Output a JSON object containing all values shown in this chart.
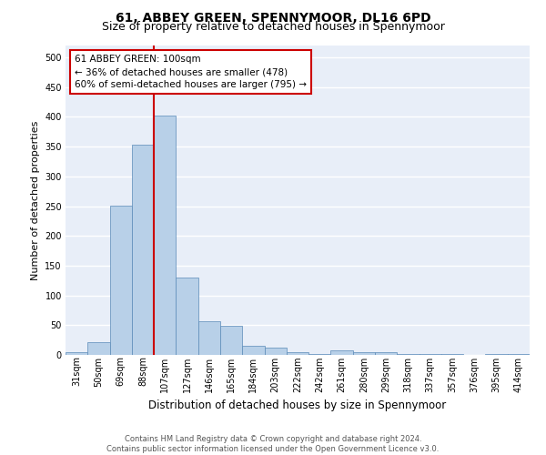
{
  "title": "61, ABBEY GREEN, SPENNYMOOR, DL16 6PD",
  "subtitle": "Size of property relative to detached houses in Spennymoor",
  "xlabel": "Distribution of detached houses by size in Spennymoor",
  "ylabel": "Number of detached properties",
  "bar_labels": [
    "31sqm",
    "50sqm",
    "69sqm",
    "88sqm",
    "107sqm",
    "127sqm",
    "146sqm",
    "165sqm",
    "184sqm",
    "203sqm",
    "222sqm",
    "242sqm",
    "261sqm",
    "280sqm",
    "299sqm",
    "318sqm",
    "337sqm",
    "357sqm",
    "376sqm",
    "395sqm",
    "414sqm"
  ],
  "bar_values": [
    5,
    22,
    251,
    354,
    403,
    130,
    57,
    49,
    16,
    13,
    5,
    2,
    7,
    5,
    5,
    2,
    1,
    2,
    0,
    1,
    2
  ],
  "bar_color": "#b8d0e8",
  "bar_edge_color": "#5a8ab8",
  "property_line_color": "#cc0000",
  "annotation_text": "61 ABBEY GREEN: 100sqm\n← 36% of detached houses are smaller (478)\n60% of semi-detached houses are larger (795) →",
  "annotation_box_color": "#ffffff",
  "annotation_box_edge_color": "#cc0000",
  "ylim_max": 520,
  "yticks": [
    0,
    50,
    100,
    150,
    200,
    250,
    300,
    350,
    400,
    450,
    500
  ],
  "footer_line1": "Contains HM Land Registry data © Crown copyright and database right 2024.",
  "footer_line2": "Contains public sector information licensed under the Open Government Licence v3.0.",
  "background_color": "#e8eef8",
  "grid_color": "#ffffff",
  "title_fontsize": 10,
  "subtitle_fontsize": 9,
  "xlabel_fontsize": 8.5,
  "ylabel_fontsize": 8,
  "tick_fontsize": 7,
  "footer_fontsize": 6,
  "ann_fontsize": 7.5
}
